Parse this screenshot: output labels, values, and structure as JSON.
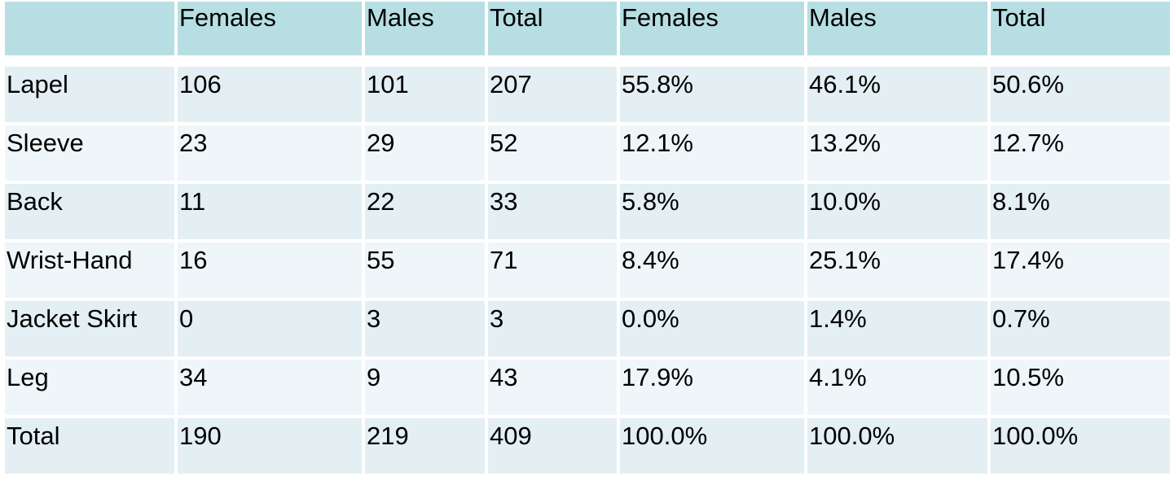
{
  "table": {
    "headers": [
      "",
      "Females",
      "Males",
      "Total",
      "Females",
      "Males",
      "Total"
    ],
    "rows": [
      [
        "Lapel",
        "106",
        "101",
        "207",
        "55.8%",
        "46.1%",
        "50.6%"
      ],
      [
        "Sleeve",
        "23",
        "29",
        "52",
        "12.1%",
        "13.2%",
        "12.7%"
      ],
      [
        "Back",
        "11",
        "22",
        "33",
        "5.8%",
        "10.0%",
        "8.1%"
      ],
      [
        "Wrist-Hand",
        "16",
        "55",
        "71",
        "8.4%",
        "25.1%",
        "17.4%"
      ],
      [
        "Jacket Skirt",
        "0",
        "3",
        "3",
        "0.0%",
        "1.4%",
        "0.7%"
      ],
      [
        "Leg",
        "34",
        "9",
        "43",
        "17.9%",
        "4.1%",
        "10.5%"
      ],
      [
        "Total",
        "190",
        "219",
        "409",
        "100.0%",
        "100.0%",
        "100.0%"
      ]
    ]
  },
  "colors": {
    "header_bg": "#b7dfe3",
    "row_dark_bg": "#e3eff2",
    "row_light_bg": "#eff6f9"
  }
}
